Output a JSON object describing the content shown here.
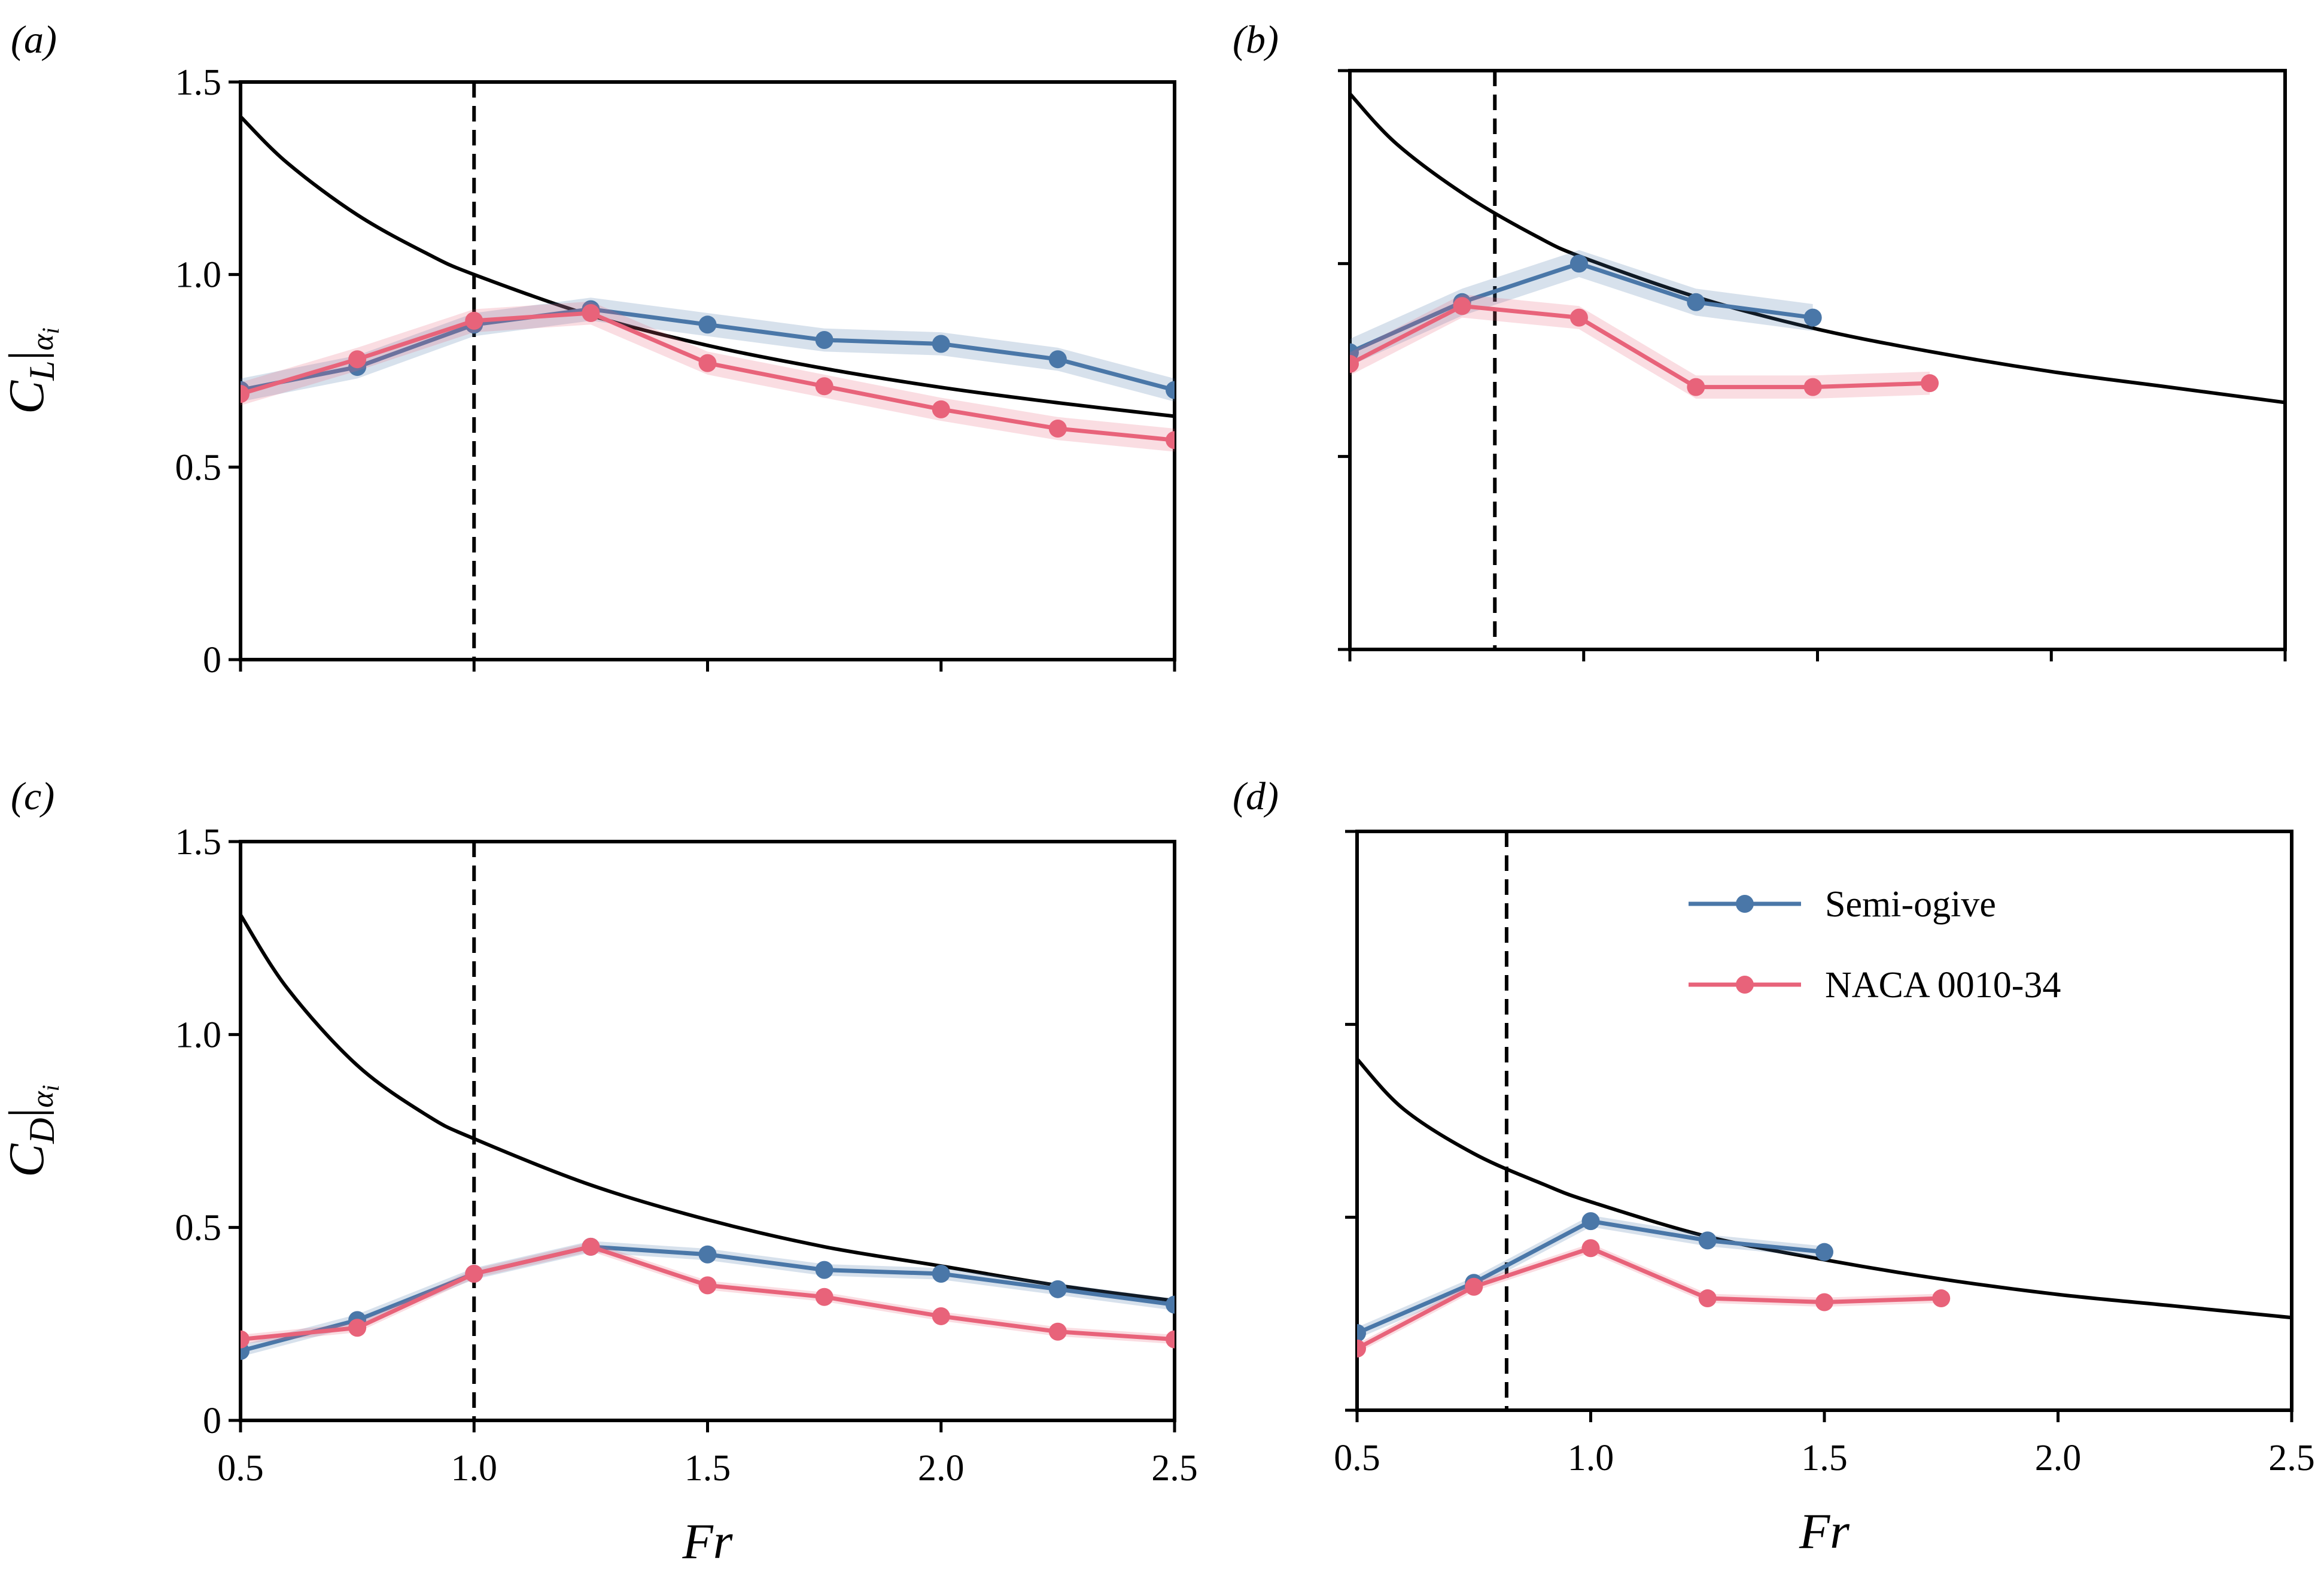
{
  "colors": {
    "semi_ogive": "#4a77a8",
    "naca": "#e8637a",
    "theory": "#000000",
    "axes": "#000000"
  },
  "legend": {
    "items": [
      {
        "label": "Semi-ogive",
        "color_key": "semi_ogive"
      },
      {
        "label": "NACA 0010-34",
        "color_key": "naca"
      }
    ]
  },
  "chart_data": [
    {
      "panel": "(a)",
      "type": "line",
      "ylabel": "C_L|α_i",
      "xlabel": "",
      "xlim": [
        0.5,
        2.5
      ],
      "ylim": [
        0,
        1.5
      ],
      "xticks": [
        0.5,
        1.0,
        1.5,
        2.0,
        2.5
      ],
      "yticks": [
        0,
        0.5,
        1.0,
        1.5
      ],
      "yticklabels": [
        "0",
        "0.5",
        "1.0",
        "1.5"
      ],
      "xticklabels": [],
      "vline": 1.0,
      "theory": {
        "x": [
          0.5,
          0.6,
          0.75,
          0.9,
          1.0,
          1.25,
          1.5,
          1.75,
          2.0,
          2.25,
          2.5
        ],
        "y": [
          1.41,
          1.29,
          1.155,
          1.054,
          1.0,
          0.894,
          0.816,
          0.756,
          0.707,
          0.667,
          0.632
        ]
      },
      "series": [
        {
          "name": "Semi-ogive",
          "color_key": "semi_ogive",
          "x": [
            0.5,
            0.75,
            1.0,
            1.25,
            1.5,
            1.75,
            2.0,
            2.25,
            2.5
          ],
          "y": [
            0.7,
            0.76,
            0.87,
            0.91,
            0.87,
            0.83,
            0.82,
            0.78,
            0.7
          ],
          "band": 0.03
        },
        {
          "name": "NACA 0010-34",
          "color_key": "naca",
          "x": [
            0.5,
            0.75,
            1.0,
            1.25,
            1.5,
            1.75,
            2.0,
            2.25,
            2.5
          ],
          "y": [
            0.69,
            0.78,
            0.88,
            0.9,
            0.77,
            0.71,
            0.65,
            0.6,
            0.57
          ],
          "band": 0.03
        }
      ]
    },
    {
      "panel": "(b)",
      "type": "line",
      "ylabel": "",
      "xlabel": "",
      "xlim": [
        0.5,
        2.5
      ],
      "ylim": [
        0,
        1.5
      ],
      "xticks": [
        0.5,
        1.0,
        1.5,
        2.0,
        2.5
      ],
      "yticks": [
        0,
        0.5,
        1.0,
        1.5
      ],
      "yticklabels": [],
      "xticklabels": [],
      "vline": 0.81,
      "theory": {
        "x": [
          0.5,
          0.6,
          0.75,
          0.9,
          1.0,
          1.25,
          1.5,
          1.75,
          2.0,
          2.25,
          2.5
        ],
        "y": [
          1.44,
          1.31,
          1.175,
          1.07,
          1.015,
          0.91,
          0.83,
          0.77,
          0.72,
          0.68,
          0.64
        ]
      },
      "series": [
        {
          "name": "Semi-ogive",
          "color_key": "semi_ogive",
          "x": [
            0.5,
            0.74,
            0.99,
            1.24,
            1.49
          ],
          "y": [
            0.77,
            0.9,
            1.0,
            0.9,
            0.86
          ],
          "band": 0.035
        },
        {
          "name": "NACA 0010-34",
          "color_key": "naca",
          "x": [
            0.5,
            0.74,
            0.99,
            1.24,
            1.49,
            1.74
          ],
          "y": [
            0.74,
            0.89,
            0.86,
            0.68,
            0.68,
            0.69
          ],
          "band": 0.03
        }
      ]
    },
    {
      "panel": "(c)",
      "type": "line",
      "ylabel": "C_D|α_i",
      "xlabel": "Fr",
      "xlim": [
        0.5,
        2.5
      ],
      "ylim": [
        0,
        1.5
      ],
      "xticks": [
        0.5,
        1.0,
        1.5,
        2.0,
        2.5
      ],
      "yticks": [
        0,
        0.5,
        1.0,
        1.5
      ],
      "yticklabels": [
        "0",
        "0.5",
        "1.0",
        "1.5"
      ],
      "xticklabels": [
        "0.5",
        "1.0",
        "1.5",
        "2.0",
        "2.5"
      ],
      "vline": 1.0,
      "theory": {
        "x": [
          0.5,
          0.6,
          0.75,
          0.9,
          1.0,
          1.25,
          1.5,
          1.75,
          2.0,
          2.25,
          2.5
        ],
        "y": [
          1.31,
          1.12,
          0.92,
          0.79,
          0.73,
          0.61,
          0.52,
          0.45,
          0.4,
          0.35,
          0.31
        ]
      },
      "series": [
        {
          "name": "Semi-ogive",
          "color_key": "semi_ogive",
          "x": [
            0.5,
            0.75,
            1.0,
            1.25,
            1.5,
            1.75,
            2.0,
            2.25,
            2.5
          ],
          "y": [
            0.18,
            0.26,
            0.38,
            0.45,
            0.43,
            0.39,
            0.38,
            0.34,
            0.3
          ],
          "band": 0.015
        },
        {
          "name": "NACA 0010-34",
          "color_key": "naca",
          "x": [
            0.5,
            0.75,
            1.0,
            1.25,
            1.5,
            1.75,
            2.0,
            2.25,
            2.5
          ],
          "y": [
            0.21,
            0.24,
            0.38,
            0.45,
            0.35,
            0.32,
            0.27,
            0.23,
            0.21
          ],
          "band": 0.012
        }
      ]
    },
    {
      "panel": "(d)",
      "type": "line",
      "ylabel": "",
      "xlabel": "Fr",
      "xlim": [
        0.5,
        2.5
      ],
      "ylim": [
        0,
        1.5
      ],
      "xticks": [
        0.5,
        1.0,
        1.5,
        2.0,
        2.5
      ],
      "yticks": [
        0,
        0.5,
        1.0,
        1.5
      ],
      "yticklabels": [],
      "xticklabels": [
        "0.5",
        "1.0",
        "1.5",
        "2.0",
        "2.5"
      ],
      "vline": 0.82,
      "theory": {
        "x": [
          0.5,
          0.6,
          0.75,
          0.9,
          1.0,
          1.25,
          1.5,
          1.75,
          2.0,
          2.25,
          2.5
        ],
        "y": [
          0.91,
          0.78,
          0.665,
          0.585,
          0.54,
          0.45,
          0.39,
          0.34,
          0.3,
          0.27,
          0.24
        ]
      },
      "series": [
        {
          "name": "Semi-ogive",
          "color_key": "semi_ogive",
          "x": [
            0.5,
            0.75,
            1.0,
            1.25,
            1.5
          ],
          "y": [
            0.2,
            0.33,
            0.49,
            0.44,
            0.41
          ],
          "band": 0.015
        },
        {
          "name": "NACA 0010-34",
          "color_key": "naca",
          "x": [
            0.5,
            0.75,
            1.0,
            1.25,
            1.5,
            1.75
          ],
          "y": [
            0.16,
            0.32,
            0.42,
            0.29,
            0.28,
            0.29
          ],
          "band": 0.012
        }
      ]
    }
  ]
}
